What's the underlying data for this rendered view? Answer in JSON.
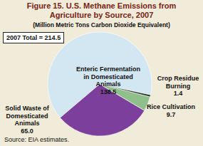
{
  "chart_data": {
    "type": "pie",
    "title": "Figure 15. U.S. Methane Emissions from Agriculture by Source, 2007",
    "subtitle": "(Million Metric Tons Carbon Dioxide Equivalent)",
    "categories": [
      "Enteric Fermentation in Domesticated Animals",
      "Solid Waste of Domesticated Animals",
      "Rice Cultivation",
      "Crop Residue Burning"
    ],
    "values": [
      138.5,
      65.0,
      9.7,
      1.4
    ],
    "value_labels": [
      "138.5",
      "65.0",
      "9.7",
      "1.4"
    ],
    "colors": [
      "#d3e7f3",
      "#7d3f9c",
      "#8fbf8b",
      "#2e3b2c"
    ],
    "data_labels": true,
    "annotations": [
      "2007 Total = 214.5",
      "Source: EIA estimates."
    ]
  }
}
